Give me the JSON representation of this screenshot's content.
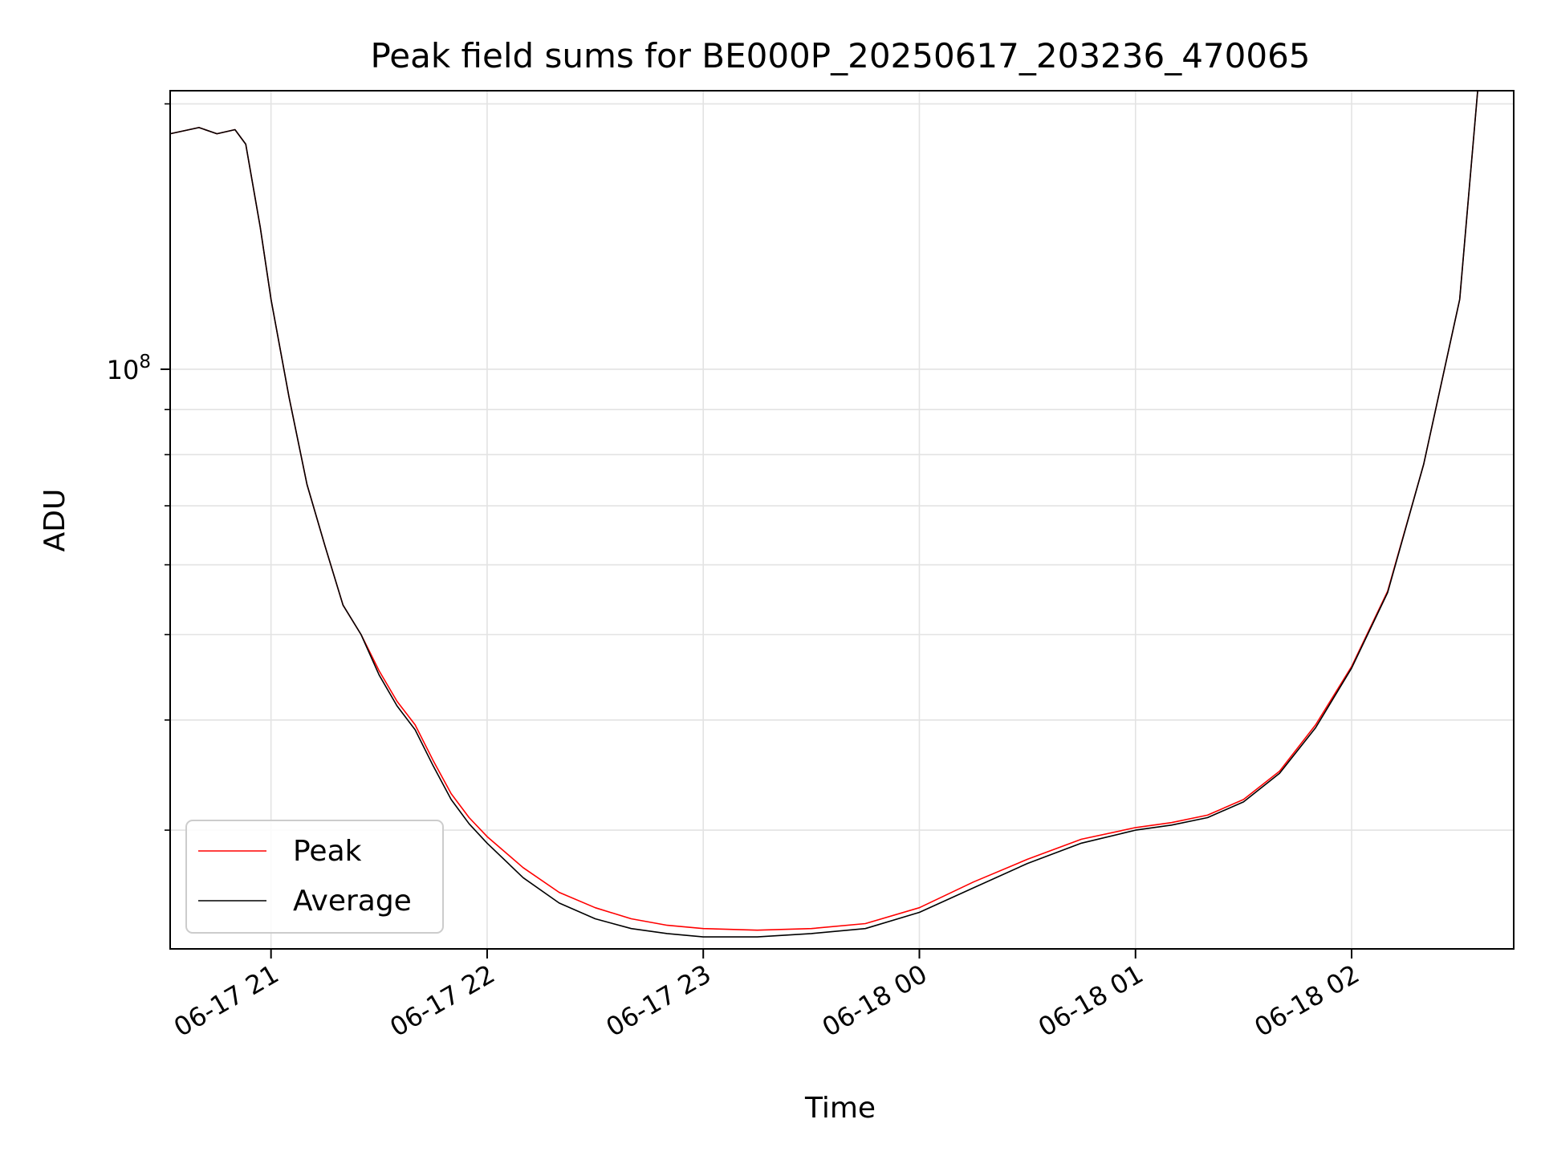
{
  "chart_data": {
    "type": "line",
    "title": "Peak field sums for BE000P_20250617_203236_470065",
    "xlabel": "Time",
    "ylabel": "ADU",
    "y_scale": "log",
    "ylim": [
      22000000.0,
      207000000.0
    ],
    "xlim": [
      "2025-06-17 20:32",
      "2025-06-18 02:45"
    ],
    "x_ticks": [
      "06-17 21",
      "06-17 22",
      "06-17 23",
      "06-18 00",
      "06-18 01",
      "06-18 02"
    ],
    "x_tick_times": [
      "2025-06-17 21:00",
      "2025-06-17 22:00",
      "2025-06-17 23:00",
      "2025-06-18 00:00",
      "2025-06-18 01:00",
      "2025-06-18 02:00"
    ],
    "y_major_tick": {
      "base": "10",
      "exp": "8",
      "value": 100000000.0
    },
    "y_minor_ticks": [
      30000000.0,
      40000000.0,
      50000000.0,
      60000000.0,
      70000000.0,
      80000000.0,
      90000000.0,
      200000000.0
    ],
    "grid": true,
    "legend_position": "lower-left",
    "series": [
      {
        "name": "Peak",
        "color": "#ff0000",
        "x": [
          "2025-06-17 20:32",
          "2025-06-17 20:40",
          "2025-06-17 20:45",
          "2025-06-17 20:50",
          "2025-06-17 20:53",
          "2025-06-17 20:57",
          "2025-06-17 21:00",
          "2025-06-17 21:05",
          "2025-06-17 21:10",
          "2025-06-17 21:15",
          "2025-06-17 21:20",
          "2025-06-17 21:25",
          "2025-06-17 21:30",
          "2025-06-17 21:35",
          "2025-06-17 21:40",
          "2025-06-17 21:45",
          "2025-06-17 21:50",
          "2025-06-17 21:55",
          "2025-06-17 22:00",
          "2025-06-17 22:10",
          "2025-06-17 22:20",
          "2025-06-17 22:30",
          "2025-06-17 22:40",
          "2025-06-17 22:50",
          "2025-06-17 23:00",
          "2025-06-17 23:15",
          "2025-06-17 23:30",
          "2025-06-17 23:45",
          "2025-06-18 00:00",
          "2025-06-18 00:15",
          "2025-06-18 00:30",
          "2025-06-18 00:45",
          "2025-06-18 01:00",
          "2025-06-18 01:10",
          "2025-06-18 01:20",
          "2025-06-18 01:30",
          "2025-06-18 01:40",
          "2025-06-18 01:50",
          "2025-06-18 02:00",
          "2025-06-18 02:10",
          "2025-06-18 02:20",
          "2025-06-18 02:30",
          "2025-06-18 02:35"
        ],
        "y": [
          185000000.0,
          188000000.0,
          185000000.0,
          187000000.0,
          180000000.0,
          145000000.0,
          120000000.0,
          93000000.0,
          74000000.0,
          63000000.0,
          54000000.0,
          50000000.0,
          45500000.0,
          42000000.0,
          39500000.0,
          36000000.0,
          33000000.0,
          31000000.0,
          29500000.0,
          27200000.0,
          25500000.0,
          24500000.0,
          23800000.0,
          23400000.0,
          23200000.0,
          23100000.0,
          23200000.0,
          23500000.0,
          24500000.0,
          26200000.0,
          27800000.0,
          29300000.0,
          30200000.0,
          30600000.0,
          31200000.0,
          32500000.0,
          35000000.0,
          39500000.0,
          46000000.0,
          56000000.0,
          78000000.0,
          120000000.0,
          207000000.0
        ]
      },
      {
        "name": "Average",
        "color": "#000000",
        "x": [
          "2025-06-17 20:32",
          "2025-06-17 20:40",
          "2025-06-17 20:45",
          "2025-06-17 20:50",
          "2025-06-17 20:53",
          "2025-06-17 20:57",
          "2025-06-17 21:00",
          "2025-06-17 21:05",
          "2025-06-17 21:10",
          "2025-06-17 21:15",
          "2025-06-17 21:20",
          "2025-06-17 21:25",
          "2025-06-17 21:30",
          "2025-06-17 21:35",
          "2025-06-17 21:40",
          "2025-06-17 21:45",
          "2025-06-17 21:50",
          "2025-06-17 21:55",
          "2025-06-17 22:00",
          "2025-06-17 22:10",
          "2025-06-17 22:20",
          "2025-06-17 22:30",
          "2025-06-17 22:40",
          "2025-06-17 22:50",
          "2025-06-17 23:00",
          "2025-06-17 23:15",
          "2025-06-17 23:30",
          "2025-06-17 23:45",
          "2025-06-18 00:00",
          "2025-06-18 00:15",
          "2025-06-18 00:30",
          "2025-06-18 00:45",
          "2025-06-18 01:00",
          "2025-06-18 01:10",
          "2025-06-18 01:20",
          "2025-06-18 01:30",
          "2025-06-18 01:40",
          "2025-06-18 01:50",
          "2025-06-18 02:00",
          "2025-06-18 02:10",
          "2025-06-18 02:20",
          "2025-06-18 02:30",
          "2025-06-18 02:35"
        ],
        "y": [
          185000000.0,
          188000000.0,
          185000000.0,
          187000000.0,
          180000000.0,
          145000000.0,
          120000000.0,
          93000000.0,
          74000000.0,
          63000000.0,
          54000000.0,
          50000000.0,
          45000000.0,
          41500000.0,
          39000000.0,
          35500000.0,
          32500000.0,
          30500000.0,
          29000000.0,
          26500000.0,
          24800000.0,
          23800000.0,
          23200000.0,
          22900000.0,
          22700000.0,
          22700000.0,
          22900000.0,
          23200000.0,
          24200000.0,
          25800000.0,
          27500000.0,
          29000000.0,
          30000000.0,
          30400000.0,
          31000000.0,
          32300000.0,
          34800000.0,
          39200000.0,
          45800000.0,
          55800000.0,
          78000000.0,
          120000000.0,
          207000000.0
        ]
      }
    ]
  }
}
